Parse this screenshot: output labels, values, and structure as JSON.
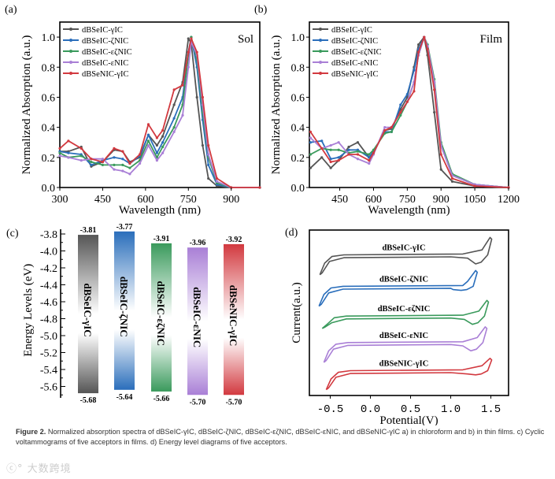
{
  "colors": {
    "dBSeIC-γIC": "#555555",
    "dBSeIC-ζNIC": "#2a6ebb",
    "dBSeIC-εζNIC": "#3a9a5c",
    "dBSeIC-εNIC": "#a97fd6",
    "dBSeNIC-γIC": "#d2393f"
  },
  "chart_data": [
    {
      "panel": "(a)",
      "type": "line",
      "annotation": "Sol",
      "xlabel": "Wavelength (nm)",
      "ylabel": "Normalized Absorption (a.u.)",
      "xlim": [
        300,
        1000
      ],
      "ylim": [
        0,
        1.1
      ],
      "xticks": [
        300,
        450,
        600,
        750,
        900
      ],
      "yticks": [
        "0.0",
        "0.2",
        "0.4",
        "0.6",
        "0.8",
        "1.0"
      ],
      "legend": "top-left",
      "x": [
        300,
        330,
        375,
        410,
        450,
        490,
        520,
        545,
        580,
        610,
        640,
        660,
        700,
        730,
        750,
        760,
        780,
        800,
        820,
        850,
        900,
        1000
      ],
      "series": [
        {
          "name": "dBSeIC-γIC",
          "values": [
            0.24,
            0.24,
            0.27,
            0.14,
            0.17,
            0.25,
            0.24,
            0.17,
            0.2,
            0.35,
            0.28,
            0.34,
            0.55,
            0.7,
            0.99,
            0.96,
            0.6,
            0.28,
            0.06,
            0.01,
            0,
            0
          ]
        },
        {
          "name": "dBSeIC-ζNIC",
          "values": [
            0.24,
            0.23,
            0.22,
            0.15,
            0.18,
            0.2,
            0.19,
            0.16,
            0.21,
            0.35,
            0.23,
            0.3,
            0.46,
            0.6,
            0.9,
            1.0,
            0.8,
            0.45,
            0.15,
            0.02,
            0,
            0
          ]
        },
        {
          "name": "dBSeIC-εζNIC",
          "values": [
            0.23,
            0.2,
            0.21,
            0.17,
            0.15,
            0.15,
            0.15,
            0.13,
            0.18,
            0.31,
            0.2,
            0.27,
            0.4,
            0.55,
            0.88,
            1.0,
            0.85,
            0.5,
            0.2,
            0.03,
            0,
            0
          ]
        },
        {
          "name": "dBSeIC-εNIC",
          "values": [
            0.21,
            0.2,
            0.18,
            0.19,
            0.19,
            0.12,
            0.11,
            0.09,
            0.16,
            0.28,
            0.18,
            0.23,
            0.37,
            0.48,
            0.8,
            0.97,
            0.88,
            0.55,
            0.22,
            0.04,
            0,
            0
          ]
        },
        {
          "name": "dBSeNIC-γIC",
          "values": [
            0.26,
            0.31,
            0.26,
            0.19,
            0.17,
            0.26,
            0.24,
            0.16,
            0.22,
            0.42,
            0.33,
            0.38,
            0.65,
            0.68,
            0.9,
            0.99,
            0.9,
            0.6,
            0.28,
            0.06,
            0,
            0
          ]
        }
      ]
    },
    {
      "panel": "(b)",
      "type": "line",
      "annotation": "Film",
      "xlabel": "Wavelength (nm)",
      "ylabel": "Normalized Absorption (a.u.)",
      "xlim": [
        315,
        1200
      ],
      "ylim": [
        0,
        1.1
      ],
      "xticks": [
        450,
        600,
        750,
        900,
        1050,
        1200
      ],
      "yticks": [
        "0.0",
        "0.2",
        "0.4",
        "0.6",
        "0.8",
        "1.0"
      ],
      "legend": "top-left",
      "x": [
        320,
        370,
        410,
        445,
        490,
        530,
        580,
        600,
        650,
        680,
        720,
        750,
        780,
        800,
        825,
        840,
        870,
        900,
        950,
        1050,
        1200
      ],
      "series": [
        {
          "name": "dBSeIC-γIC",
          "values": [
            0.13,
            0.2,
            0.13,
            0.18,
            0.27,
            0.3,
            0.2,
            0.23,
            0.38,
            0.39,
            0.52,
            0.6,
            0.8,
            0.95,
            1.0,
            0.88,
            0.5,
            0.12,
            0.04,
            0.01,
            0
          ]
        },
        {
          "name": "dBSeIC-ζNIC",
          "values": [
            0.3,
            0.31,
            0.19,
            0.2,
            0.25,
            0.25,
            0.2,
            0.24,
            0.37,
            0.37,
            0.55,
            0.62,
            0.78,
            0.92,
            1.0,
            0.93,
            0.7,
            0.28,
            0.08,
            0.02,
            0
          ]
        },
        {
          "name": "dBSeIC-εζNIC",
          "values": [
            0.22,
            0.26,
            0.25,
            0.25,
            0.23,
            0.24,
            0.22,
            0.25,
            0.36,
            0.37,
            0.48,
            0.57,
            0.7,
            0.88,
            1.0,
            0.95,
            0.72,
            0.3,
            0.09,
            0.02,
            0
          ]
        },
        {
          "name": "dBSeIC-εNIC",
          "values": [
            0.33,
            0.26,
            0.28,
            0.3,
            0.22,
            0.19,
            0.16,
            0.22,
            0.4,
            0.4,
            0.5,
            0.57,
            0.7,
            0.88,
            1.0,
            0.94,
            0.7,
            0.28,
            0.08,
            0.02,
            0
          ]
        },
        {
          "name": "dBSeNIC-γIC",
          "values": [
            0.37,
            0.26,
            0.17,
            0.18,
            0.22,
            0.22,
            0.18,
            0.23,
            0.38,
            0.4,
            0.5,
            0.57,
            0.64,
            0.9,
            1.0,
            0.92,
            0.65,
            0.22,
            0.06,
            0.01,
            0
          ]
        }
      ]
    },
    {
      "panel": "(c)",
      "type": "bar",
      "ylabel": "Energy Levels (eV)",
      "ylim": [
        -5.72,
        -3.74
      ],
      "yticks": [
        "-3.8",
        "-4.0",
        "-4.2",
        "-4.4",
        "-4.6",
        "-4.8",
        "-5.0",
        "-5.2",
        "-5.4",
        "-5.6"
      ],
      "bars": [
        {
          "name": "dBSeIC-γIC",
          "lumo": -3.81,
          "homo": -5.68,
          "lumo_label": "-3.81",
          "homo_label": "-5.68"
        },
        {
          "name": "dBSeIC-ζNIC",
          "lumo": -3.77,
          "homo": -5.64,
          "lumo_label": "-3.77",
          "homo_label": "-5.64"
        },
        {
          "name": "dBSeIC-εζNIC",
          "lumo": -3.91,
          "homo": -5.66,
          "lumo_label": "-3.91",
          "homo_label": "-5.66"
        },
        {
          "name": "dBSeIC-εNIC",
          "lumo": -3.96,
          "homo": -5.7,
          "lumo_label": "-3.96",
          "homo_label": "-5.70"
        },
        {
          "name": "dBSeNIC-γIC",
          "lumo": -3.92,
          "homo": -5.7,
          "lumo_label": "-3.92",
          "homo_label": "-5.70"
        }
      ]
    },
    {
      "panel": "(d)",
      "type": "line",
      "xlabel": "Potential(V)",
      "ylabel": "Current(a.u.)",
      "xlim": [
        -0.76,
        1.72
      ],
      "ylim": [
        0,
        10
      ],
      "xticks": [
        "-0.5",
        "0.0",
        "0.5",
        "1.0",
        "1.5"
      ],
      "series": [
        {
          "name": "dBSeIC-γIC",
          "baseline": 8.5,
          "v_min": -0.63,
          "v_max": 1.51,
          "peak": 1.05,
          "dip": -0.55,
          "low": -1.2
        },
        {
          "name": "dBSeIC-ζNIC",
          "baseline": 6.6,
          "v_min": -0.64,
          "v_max": 1.33,
          "peak": 0.95,
          "dip": -0.25,
          "low": -1.2
        },
        {
          "name": "dBSeIC-εζNIC",
          "baseline": 4.8,
          "v_min": -0.6,
          "v_max": 1.47,
          "peak": 0.95,
          "dip": -0.5,
          "low": -0.75
        },
        {
          "name": "dBSeIC-εNIC",
          "baseline": 3.2,
          "v_min": -0.58,
          "v_max": 1.45,
          "peak": 0.95,
          "dip": -0.5,
          "low": -1.2
        },
        {
          "name": "dBSeNIC-γIC",
          "baseline": 1.5,
          "v_min": -0.55,
          "v_max": 1.51,
          "peak": 0.75,
          "dip": -0.25,
          "low": -1.15
        }
      ]
    }
  ],
  "caption": {
    "label": "Figure 2.",
    "text": "Normalized absorption spectra of dBSeIC-γIC, dBSeIC-ζNIC, dBSeIC-εζNIC, dBSeIC-εNIC, and dBSeNIC-γIC a) in chloroform and b) in thin films. c) Cyclic voltammograms of five acceptors in films. d) Energy level diagrams of five acceptors."
  },
  "watermark": "大数跨境"
}
